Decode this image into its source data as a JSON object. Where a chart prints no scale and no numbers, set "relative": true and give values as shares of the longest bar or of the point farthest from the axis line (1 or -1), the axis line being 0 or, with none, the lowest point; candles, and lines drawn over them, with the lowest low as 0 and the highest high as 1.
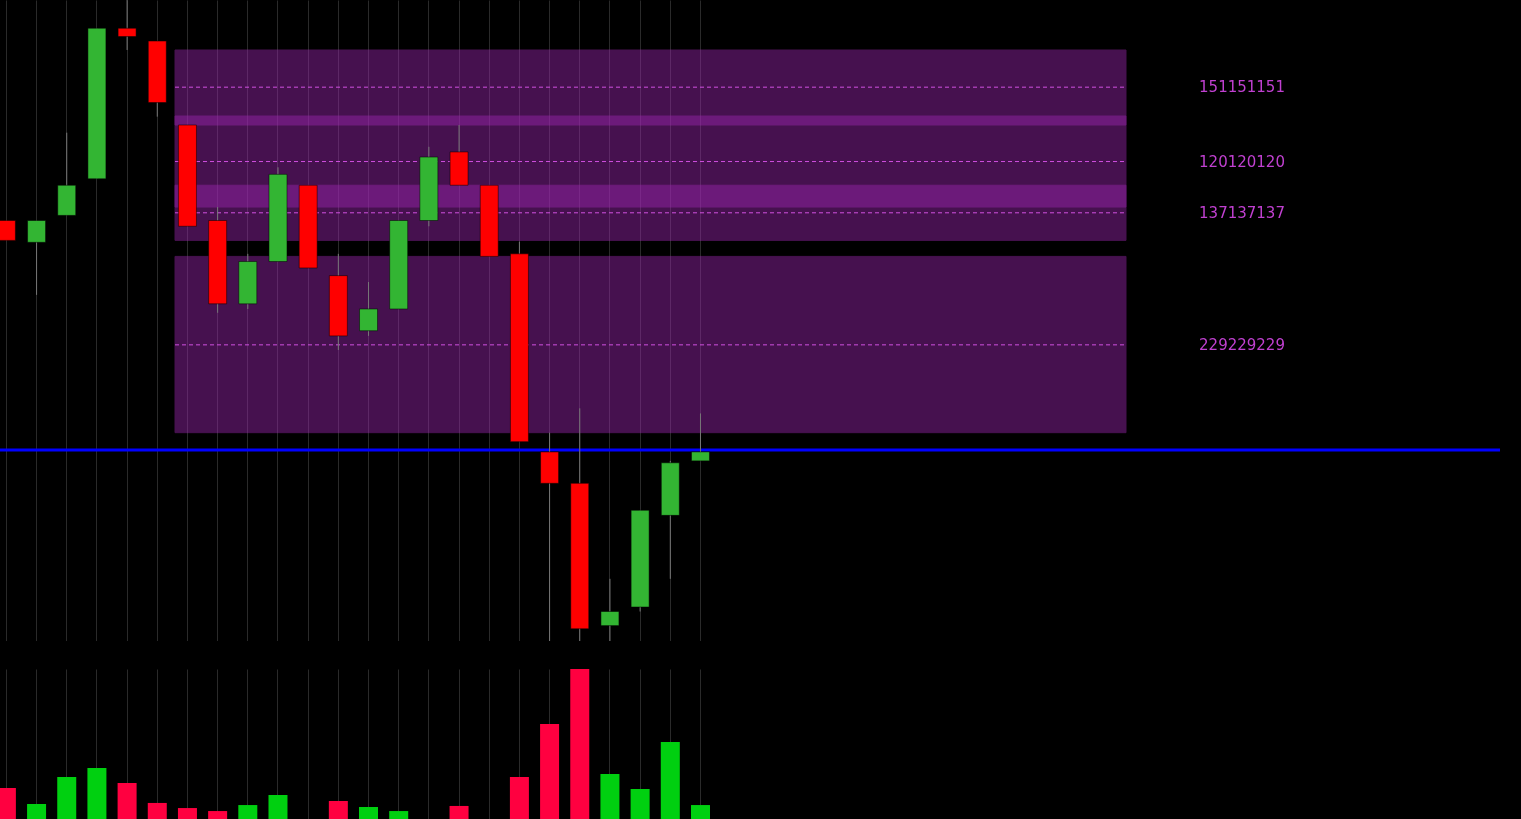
{
  "chart_data": [
    {
      "type": "candlestick",
      "relative": true,
      "grid": "x",
      "categories": [
        null,
        null,
        null,
        null,
        null,
        null,
        null,
        null,
        null,
        null,
        null,
        null,
        null,
        null,
        null,
        null,
        null,
        null,
        null,
        null,
        null,
        null,
        null,
        null
      ],
      "ohlc": [
        [
          0.656,
          0.656,
          0.625,
          0.625
        ],
        [
          0.622,
          0.656,
          0.54,
          0.656
        ],
        [
          0.664,
          0.793,
          0.664,
          0.711
        ],
        [
          0.721,
          0.956,
          0.721,
          0.956
        ],
        [
          0.956,
          1.0,
          0.922,
          0.943
        ],
        [
          0.936,
          0.936,
          0.818,
          0.84
        ],
        [
          0.805,
          0.805,
          0.647,
          0.647
        ],
        [
          0.656,
          0.677,
          0.512,
          0.526
        ],
        [
          0.526,
          0.604,
          0.518,
          0.592
        ],
        [
          0.592,
          0.739,
          0.592,
          0.728
        ],
        [
          0.711,
          0.711,
          0.582,
          0.582
        ],
        [
          0.57,
          0.604,
          0.454,
          0.476
        ],
        [
          0.484,
          0.56,
          0.476,
          0.518
        ],
        [
          0.518,
          0.656,
          0.518,
          0.656
        ],
        [
          0.656,
          0.771,
          0.647,
          0.755
        ],
        [
          0.763,
          0.805,
          0.711,
          0.711
        ],
        [
          0.711,
          0.711,
          0.6,
          0.6
        ],
        [
          0.604,
          0.623,
          0.311,
          0.311
        ],
        [
          0.295,
          0.325,
          0.0,
          0.246
        ],
        [
          0.246,
          0.363,
          0.0,
          0.019
        ],
        [
          0.024,
          0.097,
          0.0,
          0.046
        ],
        [
          0.053,
          0.204,
          0.046,
          0.204
        ],
        [
          0.196,
          0.281,
          0.097,
          0.278
        ],
        [
          0.281,
          0.355,
          0.281,
          0.295
        ]
      ],
      "colors": [
        "#ff0000",
        "#33b533",
        "#33b533",
        "#33b533",
        "#ff0000",
        "#ff0000",
        "#ff0000",
        "#ff0000",
        "#33b533",
        "#33b533",
        "#ff0000",
        "#ff0000",
        "#33b533",
        "#33b533",
        "#33b533",
        "#ff0000",
        "#ff0000",
        "#ff0000",
        "#ff0000",
        "#ff0000",
        "#33b533",
        "#33b533",
        "#33b533",
        "#33b533"
      ],
      "bands": [
        {
          "axis": "y",
          "from": 0.805,
          "to": 0.922,
          "color": "#9c27b0"
        },
        {
          "axis": "y",
          "from": 0.677,
          "to": 0.819,
          "color": "#9c27b0"
        },
        {
          "axis": "y",
          "from": 0.625,
          "to": 0.711,
          "color": "#9c27b0"
        },
        {
          "axis": "y",
          "from": 0.325,
          "to": 0.6,
          "color": "#9c27b0"
        }
      ],
      "annotations": [
        "151151151",
        "120120120",
        "137137137",
        "229229229"
      ],
      "ref_lines": [
        {
          "axis": "y",
          "value": 0.864,
          "color": "#d050e0",
          "line_style": "dashed"
        },
        {
          "axis": "y",
          "value": 0.748,
          "color": "#d050e0",
          "line_style": "dashed"
        },
        {
          "axis": "y",
          "value": 0.668,
          "color": "#d050e0",
          "line_style": "dashed"
        },
        {
          "axis": "y",
          "value": 0.462,
          "color": "#d050e0",
          "line_style": "dashed"
        },
        {
          "axis": "y",
          "value": 0.298,
          "color": "#0000ff"
        }
      ]
    },
    {
      "type": "bar",
      "relative": true,
      "grid": "x",
      "categories": [
        null,
        null,
        null,
        null,
        null,
        null,
        null,
        null,
        null,
        null,
        null,
        null,
        null,
        null,
        null,
        null,
        null,
        null,
        null,
        null,
        null,
        null,
        null,
        null
      ],
      "values": [
        0.207,
        0.1,
        0.28,
        0.34,
        0.24,
        0.107,
        0.073,
        0.053,
        0.093,
        0.16,
        null,
        0.12,
        0.08,
        0.053,
        null,
        0.087,
        null,
        0.28,
        0.633,
        1,
        0.3,
        0.2,
        0.513,
        0.093
      ],
      "colors": [
        "#ff0040",
        "#00d010",
        "#00d010",
        "#00d010",
        "#ff0040",
        "#ff0040",
        "#ff0040",
        "#ff0040",
        "#00d010",
        "#00d010",
        "#ff0040",
        "#ff0040",
        "#00d010",
        "#00d010",
        "#00d010",
        "#ff0040",
        "#ff0040",
        "#ff0040",
        "#ff0040",
        "#ff0040",
        "#00d010",
        "#00d010",
        "#00d010",
        "#00d010"
      ]
    }
  ]
}
